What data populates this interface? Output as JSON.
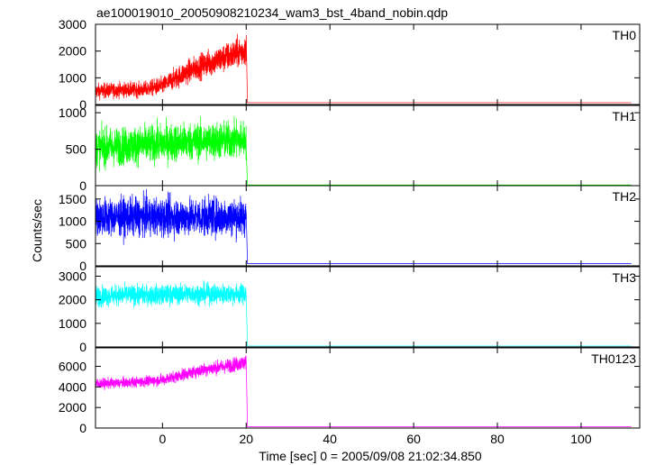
{
  "chart_data": {
    "type": "line",
    "title": "ae100019010_20050908210234_wam3_bst_4band_nobin.qdp",
    "xlabel": "Time [sec] 0 = 2005/09/08 21:02:34.850",
    "ylabel": "Counts/sec",
    "xlim": [
      -16,
      114
    ],
    "x_ticks": [
      0,
      20,
      40,
      60,
      80,
      100
    ],
    "x_tick_labels": [
      "0",
      "20",
      "40",
      "60",
      "80",
      "100"
    ],
    "data_end_x": 112,
    "drop_x": 20,
    "series": [
      {
        "name": "TH0",
        "color": "#ff0000",
        "ylim": [
          0,
          3000
        ],
        "y_ticks": [
          0,
          1000,
          2000,
          3000
        ],
        "y_tick_labels": [
          "0",
          "1000",
          "2000",
          "3000"
        ],
        "x": [
          -16,
          -10,
          -5,
          0,
          5,
          10,
          15,
          20
        ],
        "y": [
          500,
          550,
          550,
          700,
          1150,
          1500,
          1750,
          2050
        ],
        "noise": [
          250,
          250,
          250,
          300,
          380,
          430,
          480,
          520
        ],
        "after_level": 70
      },
      {
        "name": "TH1",
        "color": "#00ff00",
        "ylim": [
          0,
          1100
        ],
        "y_ticks": [
          0,
          500,
          1000
        ],
        "y_tick_labels": [
          "0",
          "500",
          "1000"
        ],
        "x": [
          -16,
          -10,
          -5,
          0,
          5,
          10,
          15,
          20
        ],
        "y": [
          520,
          540,
          560,
          580,
          600,
          610,
          620,
          630
        ],
        "noise": [
          230,
          230,
          230,
          230,
          230,
          230,
          230,
          230
        ],
        "after_level": 10
      },
      {
        "name": "TH2",
        "color": "#0000ff",
        "ylim": [
          0,
          1800
        ],
        "y_ticks": [
          0,
          500,
          1000,
          1500
        ],
        "y_tick_labels": [
          "0",
          "500",
          "1000",
          "1500"
        ],
        "x": [
          -16,
          -10,
          -5,
          0,
          5,
          10,
          15,
          20
        ],
        "y": [
          1100,
          1100,
          1100,
          1100,
          1100,
          1100,
          1100,
          1100
        ],
        "noise": [
          380,
          380,
          380,
          380,
          380,
          380,
          380,
          380
        ],
        "after_level": 50
      },
      {
        "name": "TH3",
        "color": "#00ffff",
        "ylim": [
          0,
          3400
        ],
        "y_ticks": [
          0,
          1000,
          2000,
          3000
        ],
        "y_tick_labels": [
          "0",
          "1000",
          "2000",
          "3000"
        ],
        "x": [
          -16,
          -10,
          -5,
          0,
          5,
          10,
          15,
          20
        ],
        "y": [
          2150,
          2200,
          2200,
          2200,
          2250,
          2250,
          2250,
          2250
        ],
        "noise": [
          380,
          380,
          380,
          380,
          380,
          380,
          380,
          380
        ],
        "after_level": 40
      },
      {
        "name": "TH0123",
        "color": "#ff00ff",
        "ylim": [
          0,
          7800
        ],
        "y_ticks": [
          0,
          2000,
          4000,
          6000
        ],
        "y_tick_labels": [
          "0",
          "2000",
          "4000",
          "6000"
        ],
        "x": [
          -16,
          -10,
          -5,
          0,
          5,
          10,
          15,
          20
        ],
        "y": [
          4300,
          4400,
          4500,
          4700,
          5200,
          5700,
          6000,
          6400
        ],
        "noise": [
          450,
          450,
          450,
          480,
          520,
          560,
          600,
          650
        ],
        "after_level": 120
      }
    ]
  }
}
